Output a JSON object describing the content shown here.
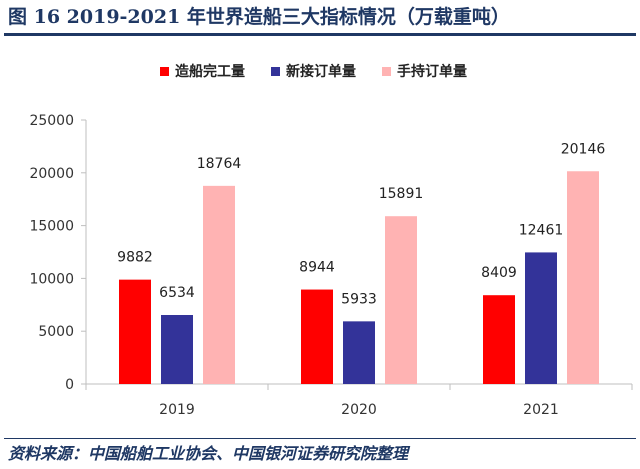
{
  "title": "图 16 2019-2021 年世界造船三大指标情况（万载重吨）",
  "source": "资料来源：中国船舶工业协会、中国银河证券研究院整理",
  "chart_data": {
    "type": "bar",
    "title": "",
    "xlabel": "",
    "ylabel": "",
    "categories": [
      "2019",
      "2020",
      "2021"
    ],
    "series": [
      {
        "name": "造船完工量",
        "color": "#ff0000",
        "values": [
          9882,
          8944,
          8409
        ]
      },
      {
        "name": "新接订单量",
        "color": "#333399",
        "values": [
          6534,
          5933,
          12461
        ]
      },
      {
        "name": "手持订单量",
        "color": "#ffb3b3",
        "values": [
          18764,
          15891,
          20146
        ]
      }
    ],
    "ylim": [
      0,
      25000
    ],
    "yticks": [
      0,
      5000,
      10000,
      15000,
      20000,
      25000
    ],
    "grid": false,
    "legend_position": "top"
  }
}
